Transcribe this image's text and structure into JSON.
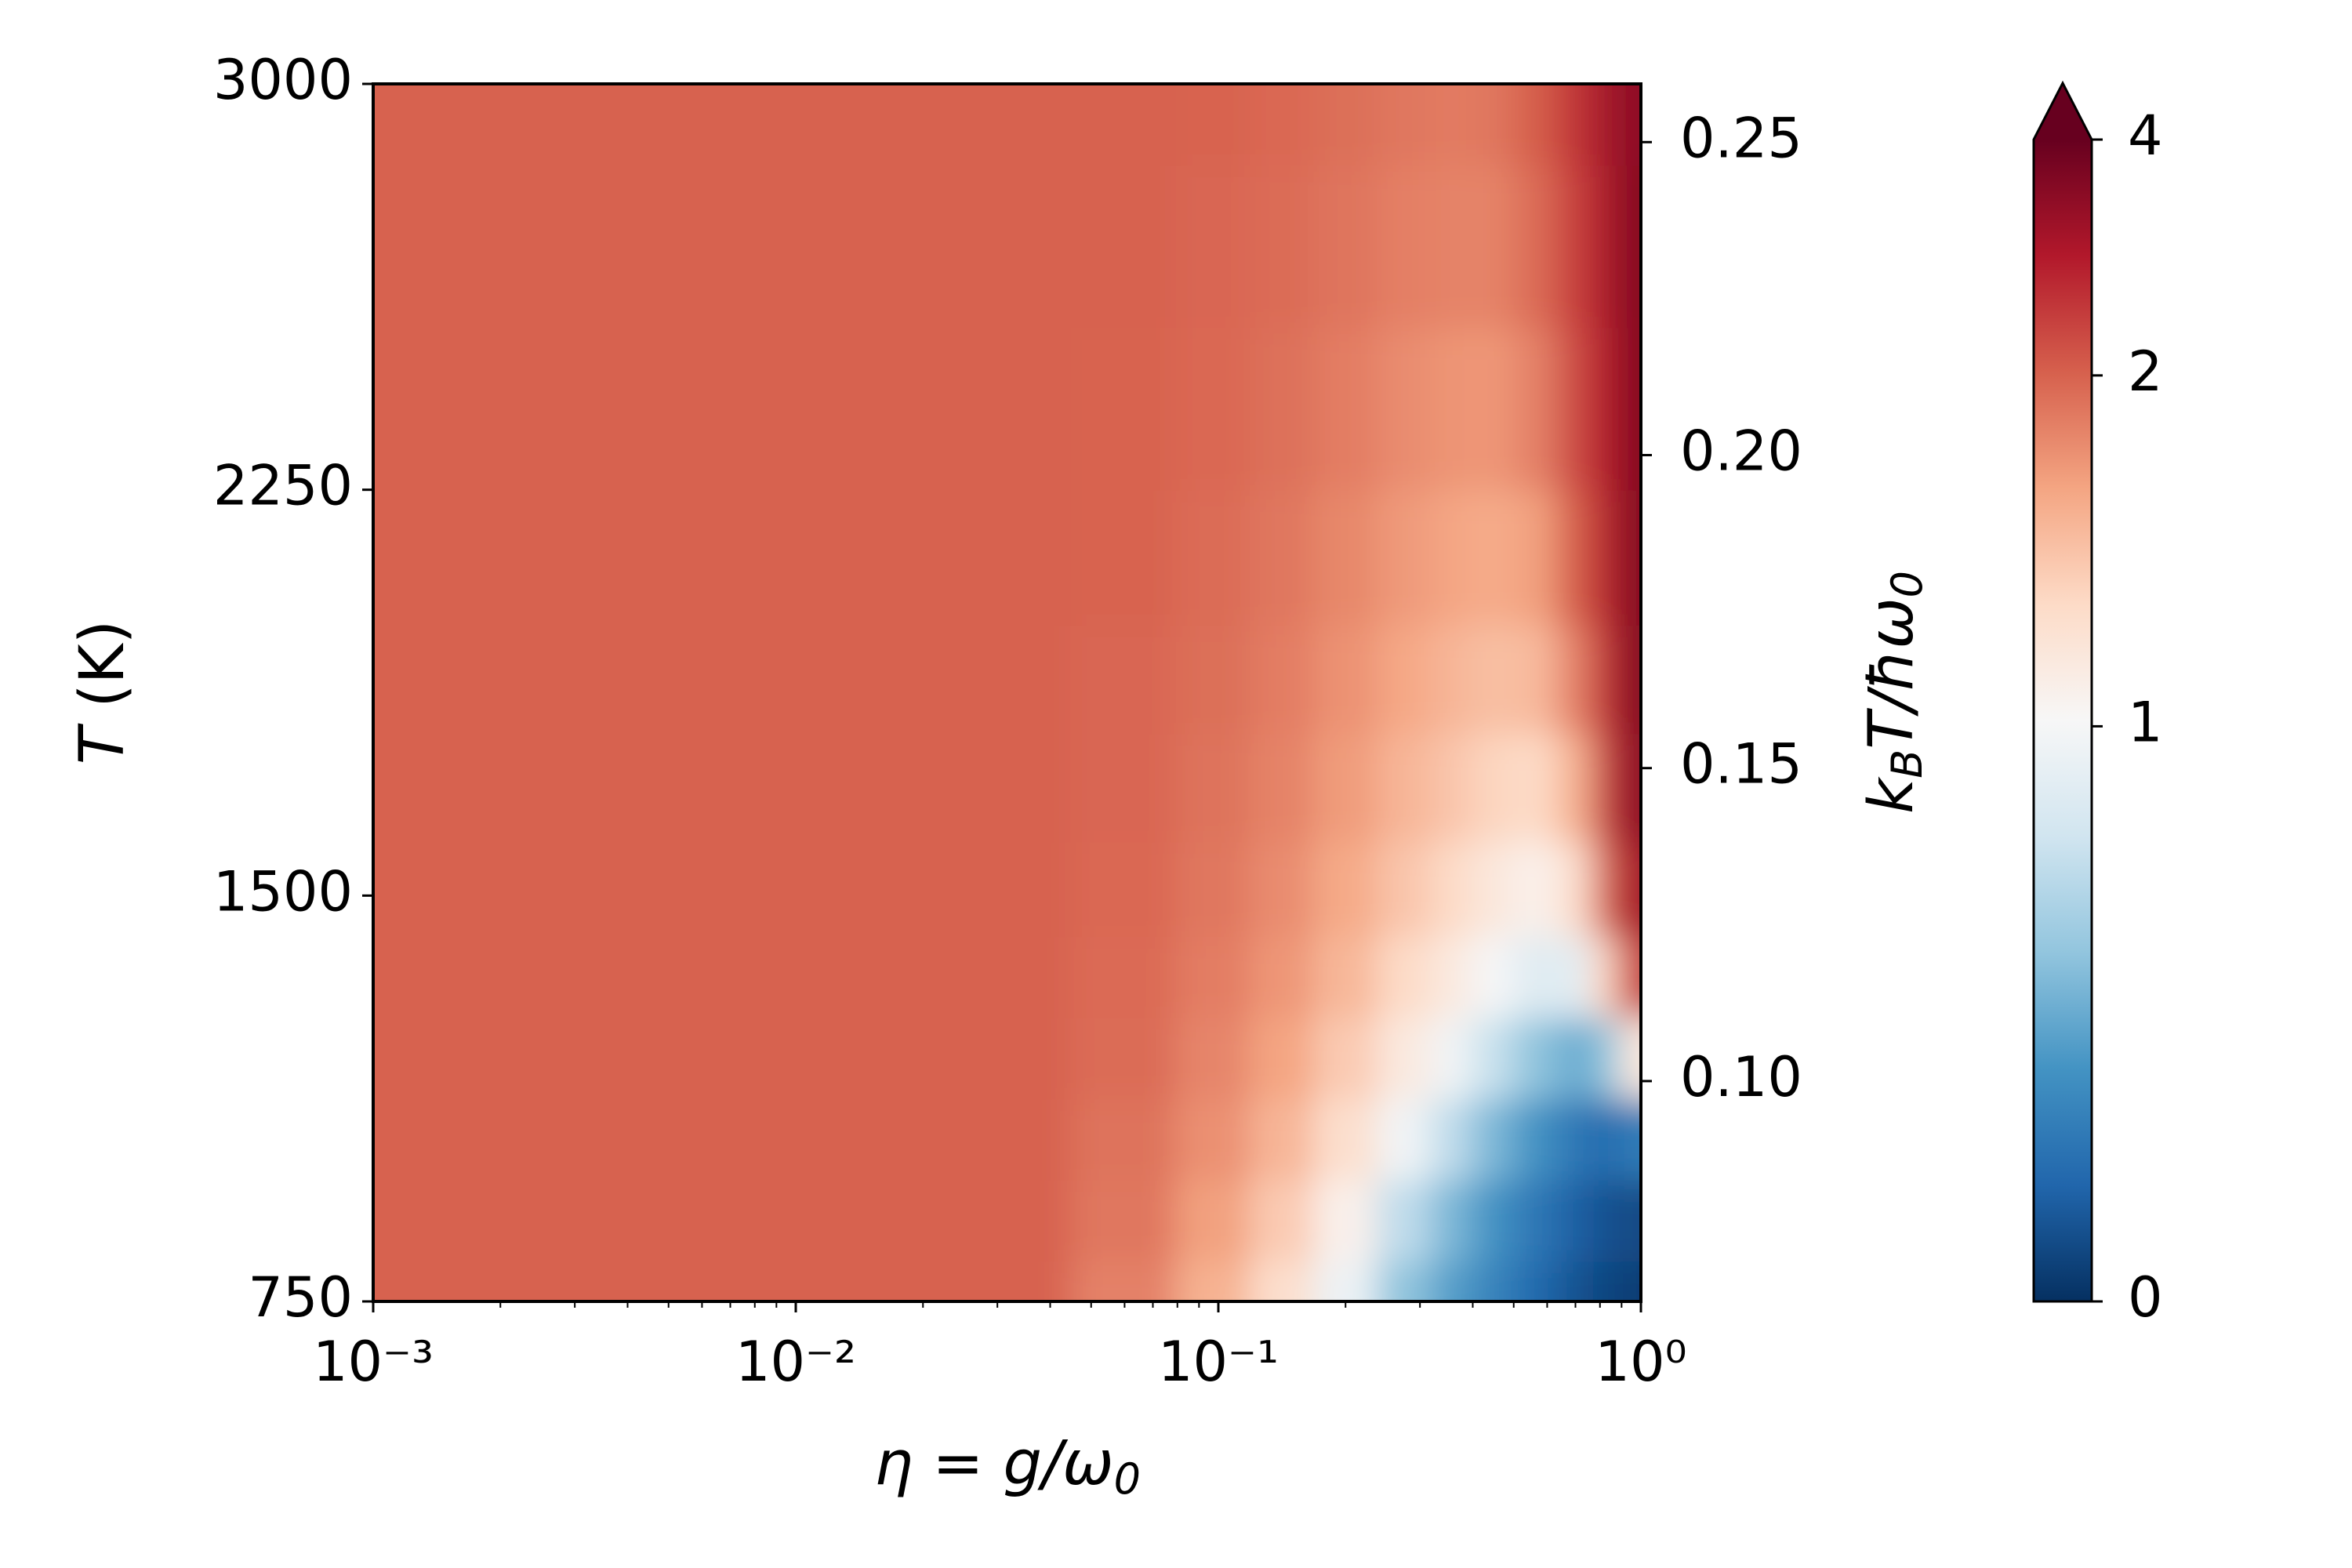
{
  "chart_data": {
    "type": "heatmap",
    "xlabel": [
      "η = g/ω",
      "0"
    ],
    "ylabel": [
      "T",
      " (K)"
    ],
    "y2label": [
      "k",
      "B",
      "T/ħω",
      "0"
    ],
    "xscale": "log",
    "xlim": [
      0.001,
      1
    ],
    "xticks": [
      {
        "value": 0.001,
        "label": "10⁻³"
      },
      {
        "value": 0.01,
        "label": "10⁻²"
      },
      {
        "value": 0.1,
        "label": "10⁻¹"
      },
      {
        "value": 1,
        "label": "10⁰"
      }
    ],
    "xminor": [
      0.002,
      0.003,
      0.004,
      0.005,
      0.006,
      0.007,
      0.008,
      0.009,
      0.02,
      0.03,
      0.04,
      0.05,
      0.06,
      0.07,
      0.08,
      0.09,
      0.2,
      0.3,
      0.4,
      0.5,
      0.6,
      0.7,
      0.8,
      0.9
    ],
    "ylim": [
      750,
      3000
    ],
    "yticks": [
      750,
      1500,
      2250,
      3000
    ],
    "y2lim": [
      0.0648,
      0.2593
    ],
    "y2ticks": [
      {
        "value": 0.1,
        "label": "0.10"
      },
      {
        "value": 0.15,
        "label": "0.15"
      },
      {
        "value": 0.2,
        "label": "0.20"
      },
      {
        "value": 0.25,
        "label": "0.25"
      }
    ],
    "x": [
      0.001,
      0.01,
      0.0316,
      0.0631,
      0.1,
      0.141,
      0.2,
      0.282,
      0.355,
      0.447,
      0.562,
      0.708,
      0.832,
      0.955
    ],
    "y": [
      750,
      900,
      1050,
      1200,
      1350,
      1500,
      1700,
      1900,
      2100,
      2400,
      2700,
      3000
    ],
    "z": [
      [
        2,
        2,
        2,
        1.85,
        1.6,
        1.3,
        0.95,
        0.6,
        0.45,
        0.33,
        0.22,
        0.13,
        0.08,
        0.05
      ],
      [
        2,
        2,
        2,
        1.9,
        1.7,
        1.45,
        1.1,
        0.75,
        0.55,
        0.4,
        0.28,
        0.18,
        0.12,
        0.1
      ],
      [
        2,
        2,
        2,
        1.92,
        1.78,
        1.58,
        1.3,
        0.98,
        0.75,
        0.55,
        0.4,
        0.28,
        0.22,
        0.3
      ],
      [
        2,
        2,
        2,
        1.95,
        1.83,
        1.68,
        1.45,
        1.18,
        0.98,
        0.78,
        0.6,
        0.5,
        0.6,
        1.2
      ],
      [
        2,
        2,
        2,
        1.96,
        1.87,
        1.75,
        1.57,
        1.35,
        1.18,
        1.0,
        0.88,
        0.9,
        1.4,
        2.5
      ],
      [
        2,
        2,
        2,
        1.97,
        1.9,
        1.8,
        1.65,
        1.48,
        1.35,
        1.2,
        1.1,
        1.3,
        2.0,
        3.2
      ],
      [
        2,
        2,
        2,
        1.98,
        1.92,
        1.84,
        1.72,
        1.58,
        1.48,
        1.38,
        1.35,
        1.6,
        2.5,
        3.5
      ],
      [
        2,
        2,
        2,
        1.98,
        1.94,
        1.87,
        1.77,
        1.66,
        1.58,
        1.52,
        1.55,
        1.85,
        2.7,
        3.6
      ],
      [
        2,
        2,
        2,
        1.99,
        1.95,
        1.9,
        1.82,
        1.73,
        1.67,
        1.64,
        1.7,
        2.05,
        2.9,
        3.6
      ],
      [
        2,
        2,
        2,
        1.99,
        1.97,
        1.93,
        1.87,
        1.8,
        1.76,
        1.75,
        1.85,
        2.3,
        3.0,
        3.6
      ],
      [
        2,
        2,
        2,
        2,
        1.98,
        1.95,
        1.91,
        1.86,
        1.84,
        1.84,
        1.95,
        2.45,
        3.1,
        3.6
      ],
      [
        2,
        2,
        2,
        2,
        1.99,
        1.97,
        1.94,
        1.9,
        1.88,
        1.9,
        2.05,
        2.6,
        3.2,
        3.5
      ]
    ],
    "clim": [
      0,
      4
    ],
    "cticks": [
      0,
      1,
      2,
      4
    ],
    "extend": "max",
    "colormap": [
      "#053061",
      "#2166ac",
      "#4393c3",
      "#92c5de",
      "#d1e5f0",
      "#f7f7f7",
      "#fddbc7",
      "#f4a582",
      "#d6604d",
      "#b2182b",
      "#67001f"
    ]
  }
}
